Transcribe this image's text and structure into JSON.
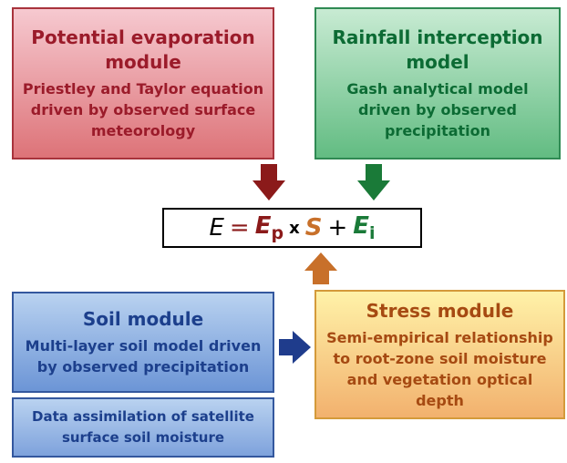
{
  "modules": [
    {
      "title": "Potential evaporation module",
      "body": "Priestley and Taylor equation driven by observed surface meteorology"
    },
    {
      "title": "Rainfall interception model",
      "body": "Gash analytical model driven by observed precipitation"
    },
    {
      "title": "Soil module",
      "body": "Multi-layer soil model driven by observed precipitation"
    },
    {
      "body": "Data assimilation of satellite surface soil moisture"
    },
    {
      "title": "Stress module",
      "body": "Semi-empirical relationship to root-zone soil moisture and vegetation optical depth"
    }
  ],
  "equation": {
    "lhs": "E",
    "equals": "=",
    "ep": "E",
    "ep_sub": "p",
    "times": "x",
    "s": "S",
    "plus": "+",
    "ei": "E",
    "ei_sub": "i"
  }
}
